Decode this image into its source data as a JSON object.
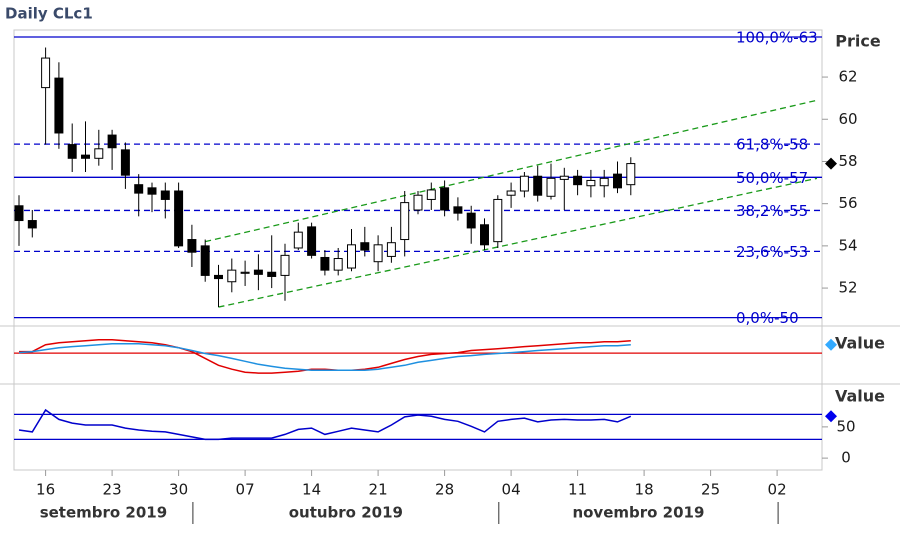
{
  "chart_data": [
    {
      "type": "candlestick",
      "title": "Daily CLc1",
      "ylabel": "Price",
      "categories": [
        "2019-09-12",
        "2019-09-13",
        "2019-09-16",
        "2019-09-17",
        "2019-09-18",
        "2019-09-19",
        "2019-09-20",
        "2019-09-23",
        "2019-09-24",
        "2019-09-25",
        "2019-09-26",
        "2019-09-27",
        "2019-09-30",
        "2019-10-01",
        "2019-10-02",
        "2019-10-03",
        "2019-10-04",
        "2019-10-07",
        "2019-10-08",
        "2019-10-09",
        "2019-10-10",
        "2019-10-11",
        "2019-10-14",
        "2019-10-15",
        "2019-10-16",
        "2019-10-17",
        "2019-10-18",
        "2019-10-21",
        "2019-10-22",
        "2019-10-23",
        "2019-10-24",
        "2019-10-25",
        "2019-10-28",
        "2019-10-29",
        "2019-10-30",
        "2019-10-31",
        "2019-11-01",
        "2019-11-04",
        "2019-11-05",
        "2019-11-06",
        "2019-11-07",
        "2019-11-08",
        "2019-11-11",
        "2019-11-12",
        "2019-11-13",
        "2019-11-14",
        "2019-11-15"
      ],
      "open": [
        55.9,
        55.2,
        61.5,
        61.95,
        58.8,
        58.3,
        58.15,
        59.25,
        58.55,
        56.9,
        56.75,
        56.6,
        56.6,
        54.3,
        54.0,
        52.6,
        52.3,
        52.7,
        52.85,
        52.75,
        52.6,
        53.9,
        54.9,
        53.45,
        52.85,
        52.95,
        54.15,
        53.25,
        53.5,
        54.3,
        55.7,
        56.2,
        56.75,
        55.85,
        55.55,
        55.0,
        54.2,
        56.4,
        56.6,
        57.3,
        56.35,
        57.15,
        57.3,
        56.85,
        56.85,
        57.4,
        56.9
      ],
      "high": [
        56.4,
        55.7,
        63.4,
        62.7,
        59.8,
        59.9,
        59.5,
        59.5,
        58.9,
        57.4,
        57.0,
        57.0,
        57.0,
        55.0,
        54.3,
        53.1,
        53.4,
        53.3,
        53.6,
        54.5,
        54.1,
        55.1,
        55.1,
        53.8,
        53.9,
        54.8,
        54.9,
        54.5,
        54.9,
        56.6,
        56.6,
        57.0,
        57.1,
        56.3,
        55.9,
        55.3,
        56.4,
        57.0,
        57.5,
        57.8,
        57.9,
        57.7,
        57.6,
        57.6,
        57.6,
        58.0,
        58.2
      ],
      "low": [
        54.0,
        54.4,
        58.8,
        58.6,
        57.5,
        57.5,
        57.8,
        57.6,
        56.7,
        55.4,
        55.6,
        55.3,
        53.9,
        53.0,
        52.3,
        51.1,
        51.8,
        52.1,
        51.9,
        52.0,
        51.4,
        53.8,
        53.4,
        52.6,
        52.6,
        52.8,
        53.5,
        52.8,
        53.2,
        53.5,
        55.5,
        55.7,
        55.4,
        55.2,
        54.1,
        53.8,
        53.9,
        55.8,
        56.3,
        56.1,
        56.2,
        55.7,
        56.4,
        56.3,
        56.3,
        56.5,
        56.4
      ],
      "close": [
        55.2,
        54.85,
        62.9,
        59.35,
        58.15,
        58.15,
        58.6,
        58.65,
        57.35,
        56.5,
        56.45,
        56.2,
        54.0,
        53.7,
        52.6,
        52.45,
        52.85,
        52.75,
        52.65,
        52.55,
        53.55,
        54.65,
        53.55,
        52.85,
        53.4,
        54.05,
        53.8,
        54.05,
        54.15,
        56.05,
        56.4,
        56.65,
        55.7,
        55.55,
        54.85,
        54.05,
        56.2,
        56.6,
        57.3,
        56.4,
        57.2,
        57.3,
        56.9,
        57.1,
        57.2,
        56.75,
        57.9
      ],
      "up_color": "#ffffff",
      "down_color": "#000000",
      "edge_color": "#000000",
      "ylim": [
        50.25,
        64.23
      ],
      "yticks": [
        52,
        54,
        56,
        58,
        60,
        62
      ],
      "xlim": [
        "2019-09-12",
        "2019-12-05"
      ],
      "xticks": [
        {
          "value": "2019-09-16",
          "label": "16"
        },
        {
          "value": "2019-09-23",
          "label": "23"
        },
        {
          "value": "2019-09-30",
          "label": "30"
        },
        {
          "value": "2019-10-07",
          "label": "07"
        },
        {
          "value": "2019-10-14",
          "label": "14"
        },
        {
          "value": "2019-10-21",
          "label": "21"
        },
        {
          "value": "2019-10-28",
          "label": "28"
        },
        {
          "value": "2019-11-04",
          "label": "04"
        },
        {
          "value": "2019-11-11",
          "label": "11"
        },
        {
          "value": "2019-11-18",
          "label": "18"
        },
        {
          "value": "2019-11-25",
          "label": "25"
        },
        {
          "value": "2019-12-02",
          "label": "02"
        }
      ],
      "xgroups": [
        {
          "label": "setembro 2019",
          "end": "2019-10-01"
        },
        {
          "label": "outubro 2019",
          "end": "2019-11-01"
        },
        {
          "label": "novembro 2019",
          "end": "2019-12-01"
        }
      ],
      "fib_color": "#0000cc",
      "fib_levels": [
        {
          "value": 63.9,
          "label": "100,0%-63",
          "style": "solid"
        },
        {
          "value": 58.82,
          "label": "61,8%-58",
          "style": "dashed"
        },
        {
          "value": 57.25,
          "label": "50,0%-57",
          "style": "solid"
        },
        {
          "value": 55.68,
          "label": "38,2%-55",
          "style": "dashed"
        },
        {
          "value": 53.74,
          "label": "23,6%-53",
          "style": "dashed"
        },
        {
          "value": 50.6,
          "label": "0,0%-50",
          "style": "solid"
        }
      ],
      "trend_color": "#1a9a1a",
      "trendlines": [
        {
          "x": [
            "2019-10-02",
            "2019-12-05"
          ],
          "y": [
            54.2,
            60.9
          ]
        },
        {
          "x": [
            "2019-10-03",
            "2019-12-05"
          ],
          "y": [
            51.1,
            57.2
          ]
        }
      ],
      "last_marker_color": "#000000"
    },
    {
      "type": "line",
      "ylabel": "Value",
      "ylim": [
        -1.6,
        1.4
      ],
      "hlines": [
        0
      ],
      "hline_color": "#e00000",
      "series": [
        {
          "color": "#e00000",
          "values": [
            0.08,
            0.08,
            0.45,
            0.56,
            0.61,
            0.66,
            0.72,
            0.72,
            0.66,
            0.61,
            0.56,
            0.45,
            0.29,
            0.08,
            -0.28,
            -0.65,
            -0.86,
            -1.02,
            -1.07,
            -1.07,
            -1.02,
            -0.97,
            -0.86,
            -0.86,
            -0.92,
            -0.92,
            -0.86,
            -0.76,
            -0.55,
            -0.34,
            -0.18,
            -0.07,
            -0.02,
            0.03,
            0.14,
            0.19,
            0.24,
            0.29,
            0.35,
            0.4,
            0.45,
            0.5,
            0.56,
            0.56,
            0.61,
            0.61,
            0.66
          ]
        },
        {
          "color": "#1e90e0",
          "values": [
            0.03,
            0.08,
            0.19,
            0.29,
            0.35,
            0.4,
            0.45,
            0.5,
            0.5,
            0.5,
            0.45,
            0.4,
            0.29,
            0.14,
            -0.02,
            -0.13,
            -0.28,
            -0.44,
            -0.6,
            -0.71,
            -0.81,
            -0.86,
            -0.92,
            -0.92,
            -0.92,
            -0.92,
            -0.92,
            -0.86,
            -0.76,
            -0.65,
            -0.49,
            -0.39,
            -0.28,
            -0.18,
            -0.13,
            -0.07,
            -0.02,
            0.03,
            0.08,
            0.14,
            0.19,
            0.24,
            0.29,
            0.35,
            0.4,
            0.4,
            0.45
          ]
        }
      ],
      "last_marker_color": "#33aaff"
    },
    {
      "type": "line",
      "ylabel": "Value",
      "ylim": [
        -19,
        117
      ],
      "yticks": [
        0,
        50
      ],
      "hlines": [
        30,
        70
      ],
      "hline_color": "#0000cc",
      "series": [
        {
          "color": "#0000cc",
          "values": [
            45,
            42,
            77,
            62,
            56,
            53,
            53,
            53,
            48,
            45,
            43,
            42,
            38,
            34,
            30,
            30,
            32,
            32,
            32,
            32,
            38,
            46,
            48,
            38,
            43,
            48,
            45,
            42,
            53,
            66,
            69,
            67,
            62,
            59,
            51,
            42,
            59,
            62,
            64,
            58,
            61,
            62,
            61,
            61,
            62,
            58,
            67
          ]
        }
      ],
      "last_marker_color": "#0000ee"
    }
  ]
}
